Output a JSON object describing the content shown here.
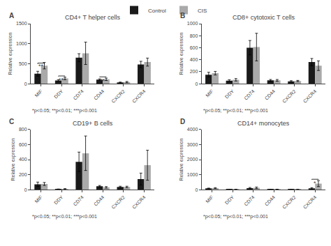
{
  "chart_data": [
    {
      "type": "bar",
      "panel_label": "A",
      "title": "CD4+ T helper cells",
      "ylabel": "Relative expression",
      "categories": [
        "MIF",
        "DDY",
        "CD74",
        "CD44",
        "CXCR2",
        "CXCR4"
      ],
      "ylim": [
        0,
        1500
      ],
      "yticks": [
        0,
        500,
        1000,
        1500
      ],
      "grid": false,
      "legend": "top",
      "series": [
        {
          "name": "Control",
          "color": "#1a1a1a",
          "values": [
            250,
            80,
            650,
            100,
            30,
            480
          ],
          "errors": [
            60,
            20,
            100,
            20,
            10,
            80
          ]
        },
        {
          "name": "CIS",
          "color": "#aaaaaa",
          "values": [
            450,
            130,
            760,
            110,
            40,
            540
          ],
          "errors": [
            80,
            30,
            280,
            30,
            15,
            100
          ]
        }
      ],
      "annotations": [
        {
          "category": "MIF",
          "text": "**",
          "y": 560
        },
        {
          "category": "DDY",
          "text": "**",
          "y": 210
        },
        {
          "category": "CD44",
          "text": "**",
          "y": 185
        }
      ],
      "footnote": "*p<0.05; **p<0.01; ***p<0.001"
    },
    {
      "type": "bar",
      "panel_label": "B",
      "title": "CD8+ cytotoxic T cells",
      "ylabel": "Relative expression",
      "categories": [
        "MIF",
        "DDY",
        "CD74",
        "CD44",
        "CXCR2",
        "CXCR4"
      ],
      "ylim": [
        0,
        1000
      ],
      "yticks": [
        0,
        200,
        400,
        600,
        800,
        1000
      ],
      "grid": false,
      "series": [
        {
          "name": "Control",
          "color": "#1a1a1a",
          "values": [
            150,
            50,
            600,
            55,
            40,
            360
          ],
          "errors": [
            40,
            15,
            120,
            15,
            10,
            60
          ]
        },
        {
          "name": "CIS",
          "color": "#aaaaaa",
          "values": [
            175,
            65,
            610,
            55,
            45,
            300
          ],
          "errors": [
            30,
            20,
            230,
            15,
            10,
            80
          ]
        }
      ],
      "annotations": [],
      "footnote": "*p<0.05; **p<0.01; ***p<0.001"
    },
    {
      "type": "bar",
      "panel_label": "C",
      "title": "CD19+ B cells",
      "ylabel": "Relative expression",
      "categories": [
        "MIF",
        "DDY",
        "CD74",
        "CD44",
        "CXCR2",
        "CXCR4"
      ],
      "ylim": [
        0,
        800
      ],
      "yticks": [
        0,
        200,
        400,
        600,
        800
      ],
      "grid": false,
      "series": [
        {
          "name": "Control",
          "color": "#1a1a1a",
          "values": [
            70,
            5,
            370,
            45,
            35,
            140
          ],
          "errors": [
            30,
            3,
            130,
            10,
            10,
            80
          ]
        },
        {
          "name": "CIS",
          "color": "#aaaaaa",
          "values": [
            75,
            8,
            485,
            30,
            35,
            325
          ],
          "errors": [
            20,
            5,
            230,
            10,
            10,
            200
          ]
        }
      ],
      "annotations": [],
      "footnote": "*p<0.05; **p<0.01; ***p<0.001"
    },
    {
      "type": "bar",
      "panel_label": "D",
      "title": "CD14+ monocytes",
      "ylabel": "Relative expression",
      "categories": [
        "MIF",
        "DDY",
        "CD74",
        "CD44",
        "CXCR2",
        "CXCR4"
      ],
      "ylim": [
        0,
        4000
      ],
      "yticks": [
        0,
        1000,
        2000,
        3000,
        4000
      ],
      "grid": false,
      "series": [
        {
          "name": "Control",
          "color": "#1a1a1a",
          "values": [
            80,
            10,
            100,
            15,
            10,
            80
          ],
          "errors": [
            20,
            5,
            40,
            5,
            5,
            50
          ]
        },
        {
          "name": "CIS",
          "color": "#aaaaaa",
          "values": [
            100,
            15,
            120,
            20,
            10,
            400
          ],
          "errors": [
            30,
            5,
            50,
            5,
            5,
            200
          ]
        }
      ],
      "annotations": [
        {
          "category": "CXCR4",
          "text": "*",
          "y": 750
        }
      ],
      "footnote": "*p<0.05; **p<0.01; ***p<0.001"
    }
  ]
}
